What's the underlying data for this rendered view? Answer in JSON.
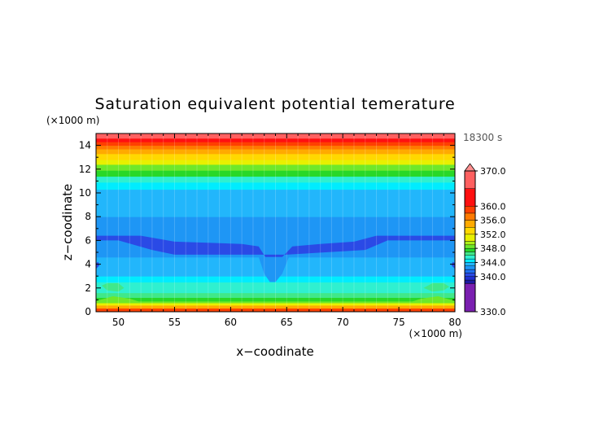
{
  "chart_data": {
    "type": "heatmap",
    "title": "Saturation equivalent potential temerature",
    "xlabel": "x−coodinate",
    "ylabel": "z−coodinate",
    "x_unit": "(×1000 m)",
    "y_unit": "(×1000 m)",
    "time_label": "18300 s",
    "xlim": [
      48,
      80
    ],
    "ylim": [
      0,
      15
    ],
    "x_ticks": [
      50,
      55,
      60,
      65,
      70,
      75,
      80
    ],
    "y_ticks": [
      0,
      2,
      4,
      6,
      8,
      10,
      12,
      14
    ],
    "grid": true,
    "colorbar": {
      "range": [
        330,
        370
      ],
      "tick_values": [
        370,
        360,
        356,
        352,
        348,
        344,
        340,
        330
      ],
      "tick_labels": [
        "370.0",
        "360.0",
        "356.0",
        "352.0",
        "348.0",
        "344.0",
        "340.0",
        "330.0"
      ],
      "levels": [
        {
          "lo": 330,
          "hi": 338,
          "color": "#7a1fb0"
        },
        {
          "lo": 338,
          "hi": 339,
          "color": "#1a1aa0"
        },
        {
          "lo": 339,
          "hi": 340,
          "color": "#1f2fd0"
        },
        {
          "lo": 340,
          "hi": 341,
          "color": "#2a4ae6"
        },
        {
          "lo": 341,
          "hi": 342,
          "color": "#1d6ff2"
        },
        {
          "lo": 342,
          "hi": 343,
          "color": "#1e96f5"
        },
        {
          "lo": 343,
          "hi": 344,
          "color": "#22b6fb"
        },
        {
          "lo": 344,
          "hi": 345,
          "color": "#00ecff"
        },
        {
          "lo": 345,
          "hi": 346,
          "color": "#2ff0d0"
        },
        {
          "lo": 346,
          "hi": 347,
          "color": "#40e88a"
        },
        {
          "lo": 347,
          "hi": 348,
          "color": "#28d828"
        },
        {
          "lo": 348,
          "hi": 349,
          "color": "#6ee82a"
        },
        {
          "lo": 349,
          "hi": 350,
          "color": "#aaf018"
        },
        {
          "lo": 350,
          "hi": 352,
          "color": "#e8f000"
        },
        {
          "lo": 352,
          "hi": 354,
          "color": "#ffd800"
        },
        {
          "lo": 354,
          "hi": 356,
          "color": "#ffaa00"
        },
        {
          "lo": 356,
          "hi": 358,
          "color": "#ff7a00"
        },
        {
          "lo": 358,
          "hi": 360,
          "color": "#ff4000"
        },
        {
          "lo": 360,
          "hi": 365,
          "color": "#ff1010"
        },
        {
          "lo": 365,
          "hi": 370,
          "color": "#ff6060"
        }
      ],
      "over_color": "#ff9090"
    },
    "bands": [
      {
        "z0": 0.0,
        "z1": 0.3,
        "value": 358
      },
      {
        "z0": 0.3,
        "z1": 0.55,
        "value": 354
      },
      {
        "z0": 0.55,
        "z1": 0.75,
        "value": 350
      },
      {
        "z0": 0.75,
        "z1": 0.9,
        "value": 348.5
      },
      {
        "z0": 0.9,
        "z1": 1.2,
        "value": 347.5
      },
      {
        "z0": 1.2,
        "z1": 1.6,
        "value": 346.5
      },
      {
        "z0": 1.6,
        "z1": 2.5,
        "value": 345.5
      },
      {
        "z0": 2.5,
        "z1": 3.0,
        "value": 344.5
      },
      {
        "z0": 3.0,
        "z1": 4.6,
        "value": 343.5
      },
      {
        "z0": 4.6,
        "z1": 5.0,
        "value": 342.5
      },
      {
        "z0": 5.0,
        "z1": 6.7,
        "value": 342.5
      },
      {
        "z0": 6.7,
        "z1": 8.0,
        "value": 342.5
      },
      {
        "z0": 8.0,
        "z1": 10.3,
        "value": 343.5
      },
      {
        "z0": 10.3,
        "z1": 10.9,
        "value": 344.5
      },
      {
        "z0": 10.9,
        "z1": 11.4,
        "value": 345.5
      },
      {
        "z0": 11.4,
        "z1": 11.9,
        "value": 347.5
      },
      {
        "z0": 11.9,
        "z1": 12.4,
        "value": 348.5
      },
      {
        "z0": 12.4,
        "z1": 12.8,
        "value": 350
      },
      {
        "z0": 12.8,
        "z1": 13.3,
        "value": 352
      },
      {
        "z0": 13.3,
        "z1": 13.7,
        "value": 354
      },
      {
        "z0": 13.7,
        "z1": 14.0,
        "value": 356
      },
      {
        "z0": 14.0,
        "z1": 14.3,
        "value": 358
      },
      {
        "z0": 14.3,
        "z1": 14.6,
        "value": 361
      },
      {
        "z0": 14.6,
        "z1": 15.0,
        "value": 366
      }
    ],
    "features": [
      {
        "name": "low-theta-core",
        "value": 340.5,
        "polygon": [
          [
            48,
            6.4
          ],
          [
            52,
            6.4
          ],
          [
            55,
            5.9
          ],
          [
            58,
            5.8
          ],
          [
            61,
            5.7
          ],
          [
            62.5,
            5.5
          ],
          [
            63.3,
            4.3
          ],
          [
            63.7,
            3.8
          ],
          [
            64.3,
            4.3
          ],
          [
            65.5,
            5.5
          ],
          [
            68,
            5.7
          ],
          [
            71,
            5.9
          ],
          [
            73,
            6.4
          ],
          [
            80,
            6.4
          ],
          [
            80,
            6.0
          ],
          [
            74,
            6.0
          ],
          [
            72,
            5.2
          ],
          [
            65,
            4.8
          ],
          [
            55,
            4.8
          ],
          [
            53,
            5.2
          ],
          [
            50,
            6.0
          ],
          [
            48,
            6.0
          ]
        ]
      },
      {
        "name": "central-dip",
        "value": 342.5,
        "polygon": [
          [
            62.5,
            4.6
          ],
          [
            63.0,
            3.2
          ],
          [
            63.5,
            2.5
          ],
          [
            64.0,
            2.5
          ],
          [
            64.6,
            3.2
          ],
          [
            65.2,
            4.6
          ]
        ]
      },
      {
        "name": "left-lower-lobe",
        "value": 346.5,
        "polygon": [
          [
            48.5,
            2.2
          ],
          [
            49,
            1.8
          ],
          [
            50,
            1.7
          ],
          [
            50.5,
            2.0
          ],
          [
            50,
            2.4
          ],
          [
            49,
            2.4
          ]
        ]
      },
      {
        "name": "right-lower-lobe",
        "value": 346.5,
        "polygon": [
          [
            77.2,
            2.0
          ],
          [
            78,
            1.7
          ],
          [
            79,
            1.8
          ],
          [
            79.5,
            2.1
          ],
          [
            79,
            2.4
          ],
          [
            78,
            2.4
          ]
        ]
      },
      {
        "name": "left-edge-notch",
        "value": 340.5,
        "polygon": [
          [
            48,
            3.6
          ],
          [
            48.3,
            3.9
          ],
          [
            48.2,
            4.2
          ],
          [
            48,
            4.1
          ]
        ]
      },
      {
        "name": "right-edge-notch",
        "value": 340.5,
        "polygon": [
          [
            80,
            3.6
          ],
          [
            79.7,
            3.9
          ],
          [
            79.8,
            4.2
          ],
          [
            80,
            4.1
          ]
        ]
      },
      {
        "name": "surface-left-rise",
        "value": 348.5,
        "polygon": [
          [
            48,
            0.9
          ],
          [
            49.5,
            1.3
          ],
          [
            51,
            1.1
          ],
          [
            52,
            0.8
          ],
          [
            48,
            0.8
          ]
        ]
      },
      {
        "name": "surface-right-rise",
        "value": 348.5,
        "polygon": [
          [
            76,
            0.8
          ],
          [
            77,
            1.1
          ],
          [
            78.5,
            1.3
          ],
          [
            80,
            0.9
          ],
          [
            80,
            0.8
          ]
        ]
      }
    ]
  }
}
